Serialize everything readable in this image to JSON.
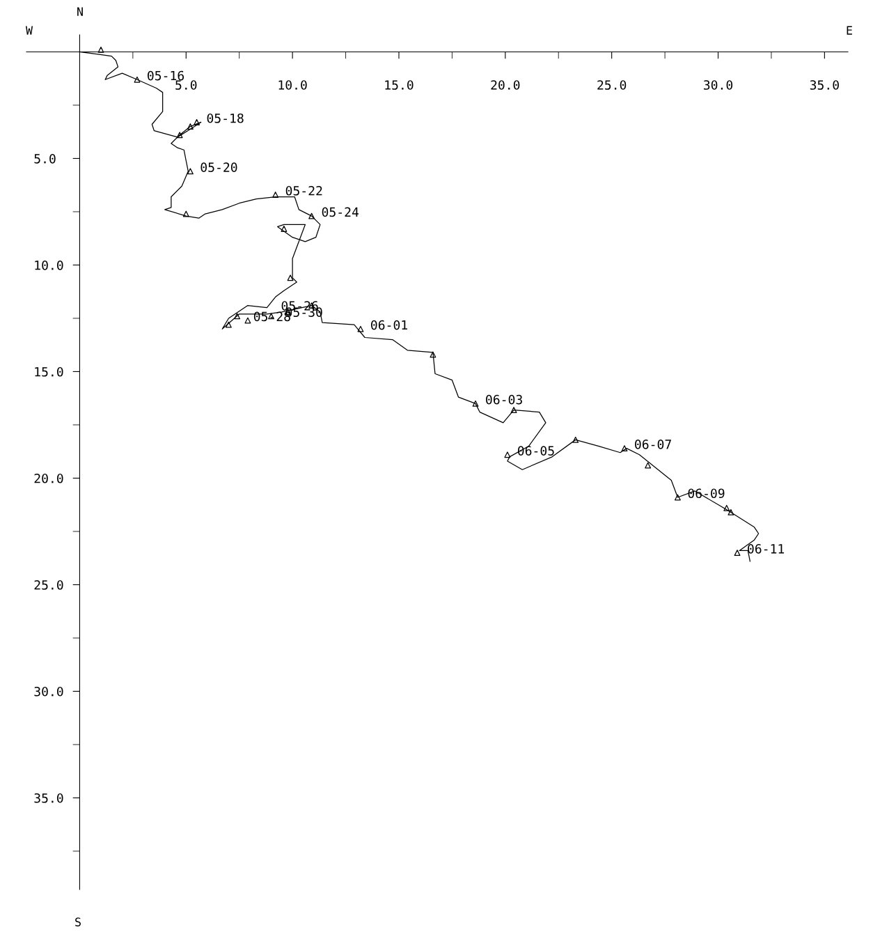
{
  "chart_data": {
    "type": "line",
    "xlim": [
      -2.5,
      36.1
    ],
    "ylim": [
      39.3,
      -0.8
    ],
    "xticks": [
      {
        "value": 2.5,
        "label": null
      },
      {
        "value": 5,
        "label": "5.0"
      },
      {
        "value": 7.5,
        "label": null
      },
      {
        "value": 10,
        "label": "10.0"
      },
      {
        "value": 12.5,
        "label": null
      },
      {
        "value": 15,
        "label": "15.0"
      },
      {
        "value": 17.5,
        "label": null
      },
      {
        "value": 20,
        "label": "20.0"
      },
      {
        "value": 22.5,
        "label": null
      },
      {
        "value": 25,
        "label": "25.0"
      },
      {
        "value": 27.5,
        "label": null
      },
      {
        "value": 30,
        "label": "30.0"
      },
      {
        "value": 32.5,
        "label": null
      },
      {
        "value": 35,
        "label": "35.0"
      }
    ],
    "yticks": [
      {
        "value": 2.5,
        "label": null
      },
      {
        "value": 5,
        "label": "5.0"
      },
      {
        "value": 7.5,
        "label": null
      },
      {
        "value": 10,
        "label": "10.0"
      },
      {
        "value": 12.5,
        "label": null
      },
      {
        "value": 15,
        "label": "15.0"
      },
      {
        "value": 17.5,
        "label": null
      },
      {
        "value": 20,
        "label": "20.0"
      },
      {
        "value": 22.5,
        "label": null
      },
      {
        "value": 25,
        "label": "25.0"
      },
      {
        "value": 27.5,
        "label": null
      },
      {
        "value": 30,
        "label": "30.0"
      },
      {
        "value": 32.5,
        "label": null
      },
      {
        "value": 35,
        "label": "35.0"
      },
      {
        "value": 37.5,
        "label": null
      }
    ],
    "series": [
      {
        "color": "#000000",
        "x": [
          0,
          0.8,
          1.5,
          1.7,
          1.8,
          1.3,
          1.2,
          2.0,
          2.7,
          3.6,
          3.9,
          3.9,
          3.4,
          3.5,
          4.6,
          5.4,
          5.7,
          5.2,
          4.7,
          4.3,
          4.6,
          4.9,
          5.0,
          5.1,
          4.8,
          4.3,
          4.3,
          4.0,
          5.0,
          5.6,
          5.9,
          6.7,
          7.5,
          8.3,
          9.2,
          10.1,
          10.3,
          10.9,
          11.3,
          11.1,
          10.6,
          10.0,
          9.3,
          9.6,
          10.6,
          10.3,
          10.0,
          10.0,
          10.2,
          9.6,
          9.2,
          8.8,
          7.9,
          7.0,
          6.7,
          7.5,
          8.8,
          9.5,
          10.9,
          11.3,
          11.4,
          12.9,
          13.4,
          14.7,
          15.4,
          16.6,
          16.7,
          17.5,
          17.8,
          18.6,
          18.8,
          19.9,
          20.4,
          21.6,
          21.9,
          21.1,
          20.2,
          20.1,
          20.8,
          22.2,
          23.3,
          24.4,
          25.4,
          25.7,
          26.3,
          26.8,
          27.8,
          28.1,
          28.9,
          30.1,
          30.6,
          31.7,
          31.9,
          31.7,
          31.0,
          31.4,
          31.5
        ],
        "values": [
          0,
          0.1,
          0.2,
          0.4,
          0.7,
          1.1,
          1.3,
          1.0,
          1.3,
          1.7,
          1.9,
          2.8,
          3.4,
          3.7,
          4.0,
          3.5,
          3.3,
          3.5,
          3.9,
          4.3,
          4.5,
          4.6,
          5.1,
          5.6,
          6.3,
          6.8,
          7.3,
          7.4,
          7.7,
          7.8,
          7.6,
          7.4,
          7.1,
          6.9,
          6.8,
          6.8,
          7.4,
          7.7,
          8.1,
          8.7,
          8.9,
          8.7,
          8.2,
          8.1,
          8.1,
          8.9,
          9.7,
          10.6,
          10.8,
          11.2,
          11.5,
          12.0,
          11.9,
          12.5,
          13.0,
          12.3,
          12.3,
          12.2,
          11.9,
          12.2,
          12.7,
          12.8,
          13.4,
          13.5,
          14.0,
          14.1,
          15.1,
          15.4,
          16.2,
          16.5,
          16.9,
          17.4,
          16.8,
          16.9,
          17.4,
          18.5,
          19.0,
          19.2,
          19.6,
          19.0,
          18.2,
          18.5,
          18.8,
          18.6,
          18.9,
          19.3,
          20.1,
          20.9,
          20.6,
          21.3,
          21.6,
          22.3,
          22.6,
          22.9,
          23.4,
          23.4,
          23.9
        ]
      },
      {
        "type": "scatter",
        "color": "#000000",
        "marker": "triangle",
        "x": [
          1.0,
          2.7,
          4.7,
          5.2,
          5.5,
          5.2,
          5.0,
          9.2,
          10.9,
          9.6,
          9.9,
          10.9,
          7.4,
          7.9,
          7.0,
          9.0,
          9.8,
          13.2,
          16.6,
          18.6,
          20.4,
          20.1,
          23.3,
          25.6,
          26.7,
          28.1,
          30.4,
          30.6,
          30.9
        ],
        "values": [
          -0.1,
          1.3,
          3.9,
          3.5,
          3.3,
          5.6,
          7.6,
          6.7,
          7.7,
          8.3,
          10.6,
          11.9,
          12.4,
          12.6,
          12.8,
          12.4,
          12.2,
          13.0,
          14.2,
          16.5,
          16.8,
          18.9,
          18.2,
          18.6,
          19.4,
          20.9,
          21.4,
          21.6,
          23.5
        ]
      }
    ],
    "annotations": [
      "N",
      "S",
      "W",
      "E",
      {
        "text": "05-16",
        "x": 2.7,
        "y": 1.3
      },
      {
        "text": "05-18",
        "x": 5.5,
        "y": 3.3
      },
      {
        "text": "05-20",
        "x": 5.2,
        "y": 5.6
      },
      {
        "text": "05-22",
        "x": 9.2,
        "y": 6.7
      },
      {
        "text": "05-24",
        "x": 10.9,
        "y": 7.7
      },
      {
        "text": "05-26",
        "x": 9.0,
        "y": 12.1
      },
      {
        "text": "05-28",
        "x": 7.7,
        "y": 12.6
      },
      {
        "text": "05-30",
        "x": 9.2,
        "y": 12.4
      },
      {
        "text": "06-01",
        "x": 13.2,
        "y": 13.0
      },
      {
        "text": "06-03",
        "x": 18.6,
        "y": 16.5
      },
      {
        "text": "06-05",
        "x": 20.1,
        "y": 18.9
      },
      {
        "text": "06-07",
        "x": 25.6,
        "y": 18.6
      },
      {
        "text": "06-09",
        "x": 28.1,
        "y": 20.9
      },
      {
        "text": "06-11",
        "x": 30.9,
        "y": 23.5
      }
    ]
  }
}
